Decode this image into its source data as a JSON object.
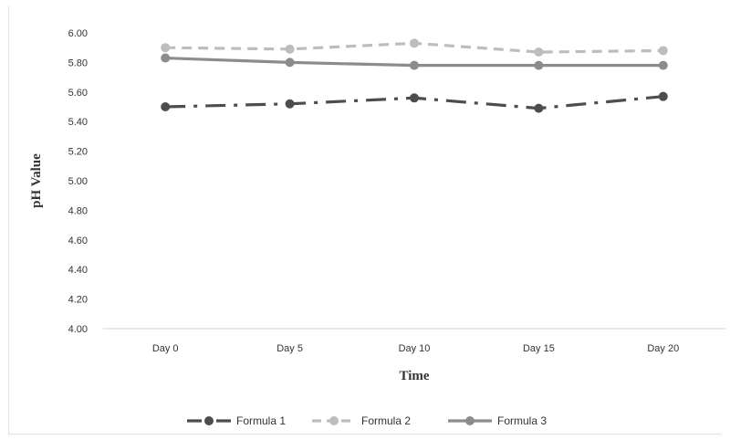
{
  "chart_data": {
    "type": "line",
    "title": "",
    "xlabel": "Time",
    "ylabel": "pH Value",
    "categories": [
      "Day 0",
      "Day 5",
      "Day 10",
      "Day 15",
      "Day 20"
    ],
    "ylim": [
      4.0,
      6.0
    ],
    "yticks": [
      "4.00",
      "4.20",
      "4.40",
      "4.60",
      "4.80",
      "5.00",
      "5.20",
      "5.40",
      "5.60",
      "5.80",
      "6.00"
    ],
    "grid": false,
    "legend_position": "bottom",
    "series": [
      {
        "name": "Formula 1",
        "values": [
          5.5,
          5.52,
          5.56,
          5.49,
          5.57
        ],
        "color": "#4d4d4d",
        "style": "dash-dot"
      },
      {
        "name": "Formula 2",
        "values": [
          5.9,
          5.89,
          5.93,
          5.87,
          5.88
        ],
        "color": "#bdbdbd",
        "style": "dashed"
      },
      {
        "name": "Formula 3",
        "values": [
          5.83,
          5.8,
          5.78,
          5.78,
          5.78
        ],
        "color": "#8c8c8c",
        "style": "solid"
      }
    ]
  }
}
